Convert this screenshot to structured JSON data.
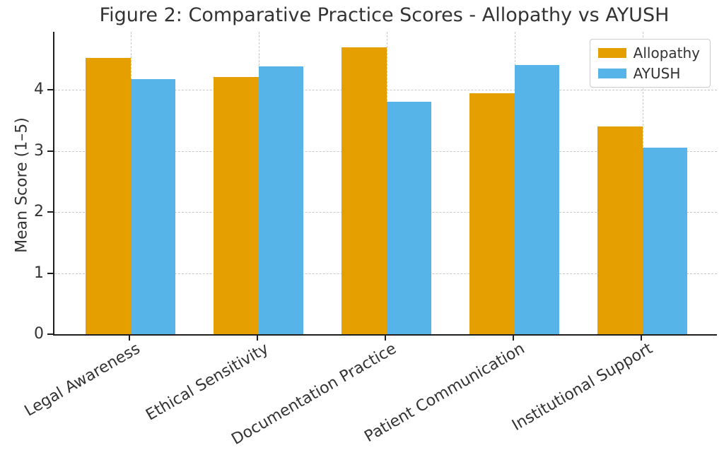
{
  "chart_data": {
    "type": "bar",
    "title": "Figure 2: Comparative Practice Scores - Allopathy vs AYUSH",
    "categories": [
      "Legal Awareness",
      "Ethical Sensitivity",
      "Documentation Practice",
      "Patient Communication",
      "Institutional Support"
    ],
    "series": [
      {
        "name": "Allopathy",
        "color": "#E69F00",
        "values": [
          4.52,
          4.21,
          4.7,
          3.94,
          3.4
        ]
      },
      {
        "name": "AYUSH",
        "color": "#56B4E9",
        "values": [
          4.18,
          4.38,
          3.81,
          4.41,
          3.05
        ]
      }
    ],
    "xlabel": "",
    "ylabel": "Mean Score (1–5)",
    "ylim": [
      0,
      4.95
    ],
    "yticks": [
      0,
      1,
      2,
      3,
      4
    ],
    "grid": "dashed, both axes, behind bars",
    "legend_position": "upper right",
    "x_tick_label_rotation_deg": 30,
    "colors": {
      "axis": "#1f1f1f",
      "grid": "#c8c8c8",
      "text": "#333333",
      "background": "#ffffff"
    }
  }
}
